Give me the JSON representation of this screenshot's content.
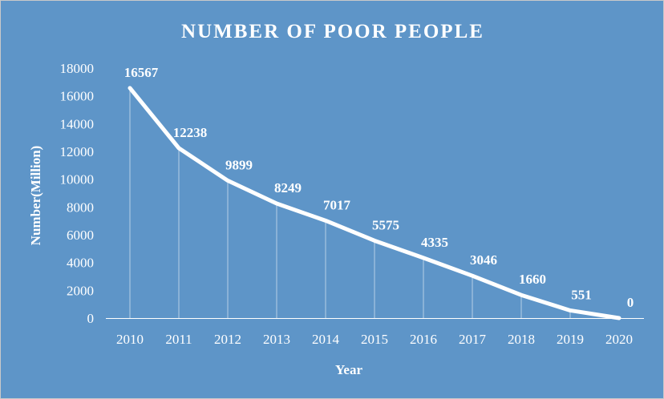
{
  "chart_data": {
    "type": "line",
    "title": "NUMBER OF POOR PEOPLE",
    "xlabel": "Year",
    "ylabel": "Number(Million)",
    "categories": [
      "2010",
      "2011",
      "2012",
      "2013",
      "2014",
      "2015",
      "2016",
      "2017",
      "2018",
      "2019",
      "2020"
    ],
    "series": [
      {
        "values": [
          16567,
          12238,
          9899,
          8249,
          7017,
          5575,
          4335,
          3046,
          1660,
          551,
          0
        ]
      }
    ],
    "data_labels": [
      "16567",
      "12238",
      "9899",
      "8249",
      "7017",
      "5575",
      "4335",
      "3046",
      "1660",
      "551",
      "0"
    ],
    "y_ticks": [
      "0",
      "2000",
      "4000",
      "6000",
      "8000",
      "10000",
      "12000",
      "14000",
      "16000",
      "18000"
    ],
    "ylim": [
      0,
      18000
    ],
    "grid": false,
    "drop_lines": true,
    "legend": "none",
    "colors": {
      "background": "#5e95c8",
      "line": "#ffffff",
      "text": "#ffffff"
    }
  }
}
